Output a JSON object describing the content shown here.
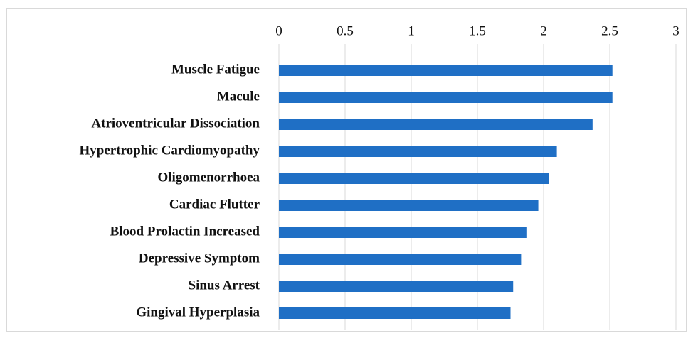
{
  "chart_data": {
    "type": "bar",
    "orientation": "horizontal",
    "categories": [
      "Muscle Fatigue",
      "Macule",
      "Atrioventricular Dissociation",
      "Hypertrophic Cardiomyopathy",
      "Oligomenorrhoea",
      "Cardiac Flutter",
      "Blood Prolactin Increased",
      "Depressive Symptom",
      "Sinus Arrest",
      "Gingival Hyperplasia"
    ],
    "values": [
      2.52,
      2.52,
      2.37,
      2.1,
      2.04,
      1.96,
      1.87,
      1.83,
      1.77,
      1.75
    ],
    "color": "#1f6fc5",
    "xlim": [
      0,
      3
    ],
    "xticks": [
      0,
      0.5,
      1,
      1.5,
      2,
      2.5,
      3
    ],
    "grid": true
  }
}
